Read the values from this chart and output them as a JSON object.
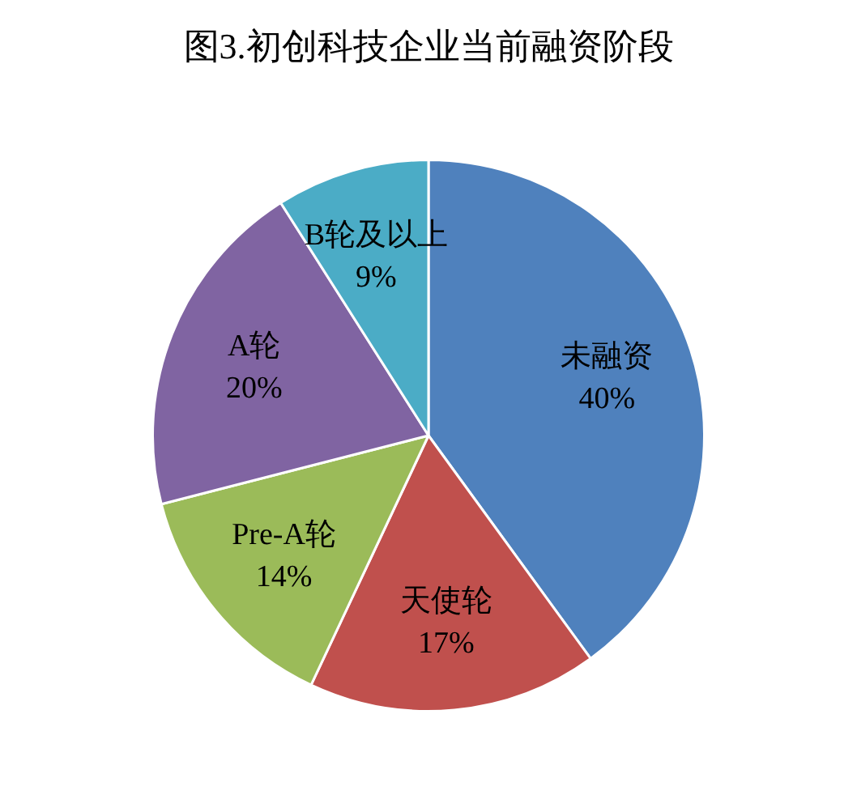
{
  "chart_data": {
    "type": "pie",
    "title": "图3.初创科技企业当前融资阶段",
    "categories": [
      "未融资",
      "天使轮",
      "Pre-A轮",
      "A轮",
      "B轮及以上"
    ],
    "values": [
      40,
      17,
      14,
      20,
      9
    ],
    "colors": [
      "#4f81bd",
      "#c0504d",
      "#9bbb59",
      "#8064a2",
      "#4bacc6"
    ],
    "value_labels": [
      "40%",
      "17%",
      "14%",
      "20%",
      "9%"
    ],
    "legend": false
  }
}
